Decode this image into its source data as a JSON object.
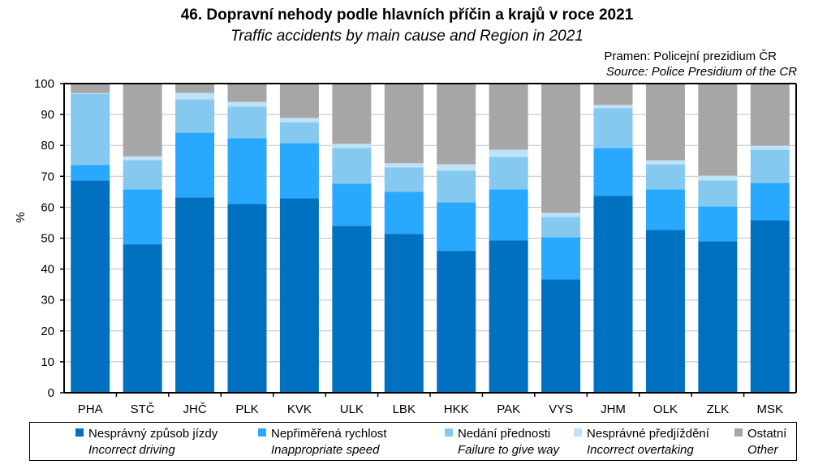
{
  "header": {
    "title": "46. Dopravní nehody podle hlavních příčin a krajů v roce 2021",
    "subtitle": "Traffic accidents by main cause and Region in 2021",
    "source_cz": "Pramen: Policejní prezidium ČR",
    "source_en": "Source: Police Presidium of the CR"
  },
  "legend": [
    {
      "cz": "Nesprávný způsob jízdy",
      "en": "Incorrect driving",
      "color": "#0070C0"
    },
    {
      "cz": "Nepřiměřená rychlost",
      "en": "Inappropriate speed",
      "color": "#29A8FF"
    },
    {
      "cz": "Nedání přednosti",
      "en": "Failure to give way",
      "color": "#85C9F1"
    },
    {
      "cz": "Nesprávné předjíždění",
      "en": "Incorrect overtaking",
      "color": "#BEE3F8"
    },
    {
      "cz": "Ostatní",
      "en": "Other",
      "color": "#A6A6A6"
    }
  ],
  "chart_data": {
    "type": "bar",
    "stacked": true,
    "title": "46. Dopravní nehody podle hlavních příčin a krajů v roce 2021",
    "subtitle": "Traffic accidents by main cause and Region in 2021",
    "xlabel": "",
    "ylabel": "%",
    "ylim": [
      0,
      100
    ],
    "yticks": [
      0,
      10,
      20,
      30,
      40,
      50,
      60,
      70,
      80,
      90,
      100
    ],
    "grid": true,
    "legend_position": "bottom",
    "categories": [
      "PHA",
      "STČ",
      "JHČ",
      "PLK",
      "KVK",
      "ULK",
      "LBK",
      "HKK",
      "PAK",
      "VYS",
      "JHM",
      "OLK",
      "ZLK",
      "MSK"
    ],
    "series": [
      {
        "name": "Nesprávný způsob jízdy / Incorrect driving",
        "color": "#0070C0",
        "values": [
          68.7,
          48.0,
          63.2,
          61.1,
          62.9,
          54.0,
          51.4,
          45.9,
          49.3,
          36.7,
          63.7,
          52.7,
          49.0,
          55.8
        ]
      },
      {
        "name": "Nepřiměřená rychlost / Inappropriate speed",
        "color": "#29A8FF",
        "values": [
          5.0,
          17.8,
          20.9,
          21.2,
          17.8,
          13.6,
          13.6,
          15.7,
          16.5,
          13.6,
          15.5,
          13.1,
          11.3,
          12.1
        ]
      },
      {
        "name": "Nedání přednosti / Failure to give way",
        "color": "#85C9F1",
        "values": [
          22.9,
          9.4,
          10.8,
          10.2,
          6.8,
          11.6,
          7.9,
          10.2,
          10.5,
          6.6,
          12.8,
          8.1,
          8.4,
          10.7
        ]
      },
      {
        "name": "Nesprávné předjíždění / Incorrect overtaking",
        "color": "#BEE3F8",
        "values": [
          0.3,
          1.3,
          2.1,
          1.6,
          1.4,
          1.3,
          1.3,
          2.1,
          2.3,
          1.3,
          1.1,
          1.3,
          1.5,
          1.3
        ]
      },
      {
        "name": "Ostatní / Other",
        "color": "#A6A6A6",
        "values": [
          3.1,
          23.5,
          3.0,
          5.9,
          11.1,
          19.5,
          25.8,
          26.1,
          21.4,
          41.8,
          6.9,
          24.8,
          29.8,
          20.1
        ]
      }
    ]
  }
}
